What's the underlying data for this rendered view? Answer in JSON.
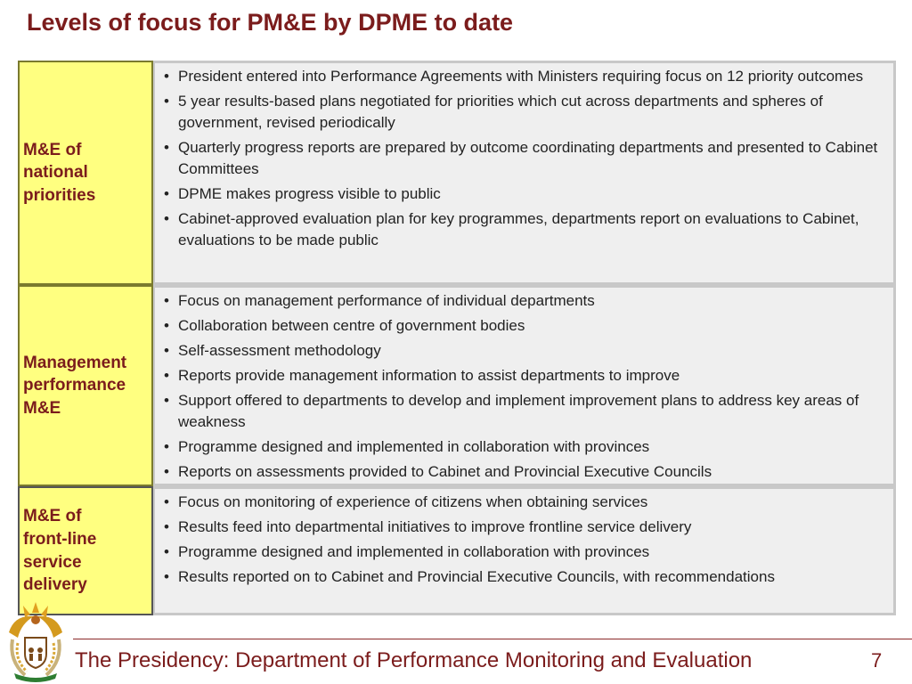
{
  "slide": {
    "title": "Levels of focus for PM&E by DPME to date",
    "rows": [
      {
        "label": [
          "M&E of",
          "national",
          "priorities"
        ],
        "bullets": [
          "President entered into Performance Agreements with Ministers requiring focus on 12 priority outcomes",
          "5 year results-based plans negotiated for priorities which cut across departments and spheres of government, revised periodically",
          "Quarterly progress reports are prepared by outcome coordinating departments and presented to Cabinet Committees",
          "DPME makes progress visible to public",
          "Cabinet-approved evaluation plan for key programmes, departments report on evaluations to Cabinet, evaluations to be made public"
        ]
      },
      {
        "label": [
          "Management",
          "performance",
          "M&E"
        ],
        "bullets": [
          "Focus on management performance of individual departments",
          "Collaboration between centre of government bodies",
          "Self-assessment methodology",
          "Reports provide management information to assist departments to improve",
          "Support offered to departments to develop and implement improvement plans to address key areas of weakness",
          "Programme designed and implemented in collaboration with provinces",
          "Reports on assessments provided to Cabinet and Provincial Executive Councils"
        ]
      },
      {
        "label": [
          "M&E of",
          "front-line",
          "service",
          "delivery"
        ],
        "bullets": [
          "Focus on monitoring of experience of citizens when obtaining services",
          "Results feed into departmental initiatives to improve frontline service delivery",
          "Programme designed and implemented in collaboration with provinces",
          "Results reported on to Cabinet and Provincial Executive Councils, with recommendations"
        ]
      }
    ]
  },
  "footer": {
    "text": "The Presidency: Department of Performance Monitoring and Evaluation",
    "page_number": "7",
    "emblem_icon": "coat-of-arms-icon"
  },
  "colors": {
    "title": "#7b1c1c",
    "label_bg": "#ffff80",
    "content_bg": "#efefef"
  }
}
